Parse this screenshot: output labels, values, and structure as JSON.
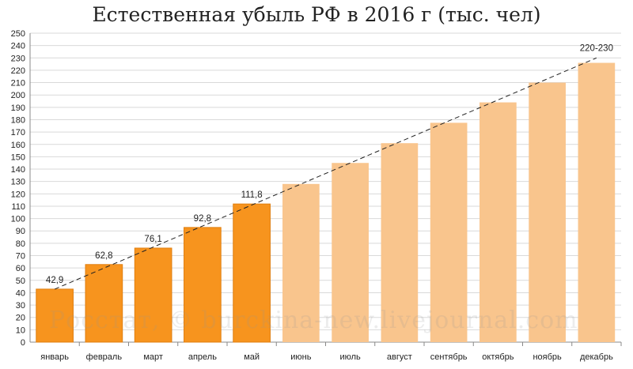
{
  "title": "Естественная убыль РФ в 2016 г (тыс. чел)",
  "watermark": "Росстат, © burckina-new.livejournal.com",
  "colors": {
    "actual": "#F7941E",
    "forecast": "#F9C58D",
    "grid": "#D9D9D9",
    "trend": "#222222"
  },
  "chart_data": {
    "type": "bar",
    "title": "Естественная убыль РФ в 2016 г (тыс. чел)",
    "xlabel": "",
    "ylabel": "",
    "ylim": [
      0,
      250
    ],
    "ytick_step": 10,
    "grid": true,
    "categories": [
      "январь",
      "февраль",
      "март",
      "апрель",
      "май",
      "июнь",
      "июль",
      "август",
      "сентябрь",
      "октябрь",
      "ноябрь",
      "декабрь"
    ],
    "values": [
      42.9,
      62.8,
      76.1,
      92.8,
      111.8,
      128,
      145,
      161,
      177.5,
      194,
      210,
      226
    ],
    "kind": [
      "actual",
      "actual",
      "actual",
      "actual",
      "actual",
      "forecast",
      "forecast",
      "forecast",
      "forecast",
      "forecast",
      "forecast",
      "forecast"
    ],
    "data_labels": [
      "42,9",
      "62,8",
      "76,1",
      "92,8",
      "111,8",
      "",
      "",
      "",
      "",
      "",
      "",
      "220-230"
    ],
    "trendline": {
      "style": "dashed",
      "from": 42.9,
      "to": 230
    }
  }
}
